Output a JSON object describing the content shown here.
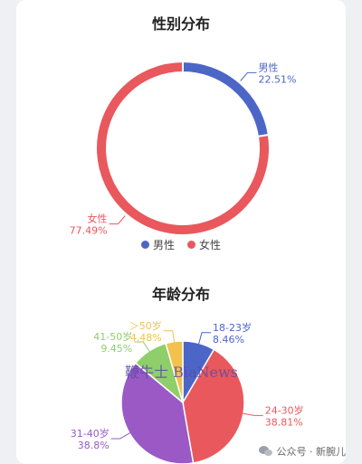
{
  "chart_data": [
    {
      "type": "pie",
      "variant": "donut",
      "title": "性别分布",
      "slices": [
        {
          "label": "男性",
          "value": 22.51,
          "value_label": "22.51%",
          "color": "#4c66c8"
        },
        {
          "label": "女性",
          "value": 77.49,
          "value_label": "77.49%",
          "color": "#e9585c"
        }
      ],
      "legend": {
        "placement": "bottom",
        "entries": [
          "男性",
          "女性"
        ]
      }
    },
    {
      "type": "pie",
      "title": "年龄分布",
      "slices": [
        {
          "label": "18-23岁",
          "value": 8.46,
          "value_label": "8.46%",
          "color": "#4c66c8"
        },
        {
          "label": "24-30岁",
          "value": 38.81,
          "value_label": "38.81%",
          "color": "#e9585c"
        },
        {
          "label": "31-40岁",
          "value": 38.8,
          "value_label": "38.8%",
          "color": "#9b59c6"
        },
        {
          "label": "41-50岁",
          "value": 9.45,
          "value_label": "9.45%",
          "color": "#8fcf6a"
        },
        {
          "label": "＞50岁",
          "value": 4.48,
          "value_label": "4.48%",
          "color": "#f2c14e"
        }
      ]
    }
  ],
  "watermark": "鞭牛士 BiaNews",
  "footer": {
    "text": "公众号 · 新腕儿",
    "icon": "wechat-icon"
  }
}
